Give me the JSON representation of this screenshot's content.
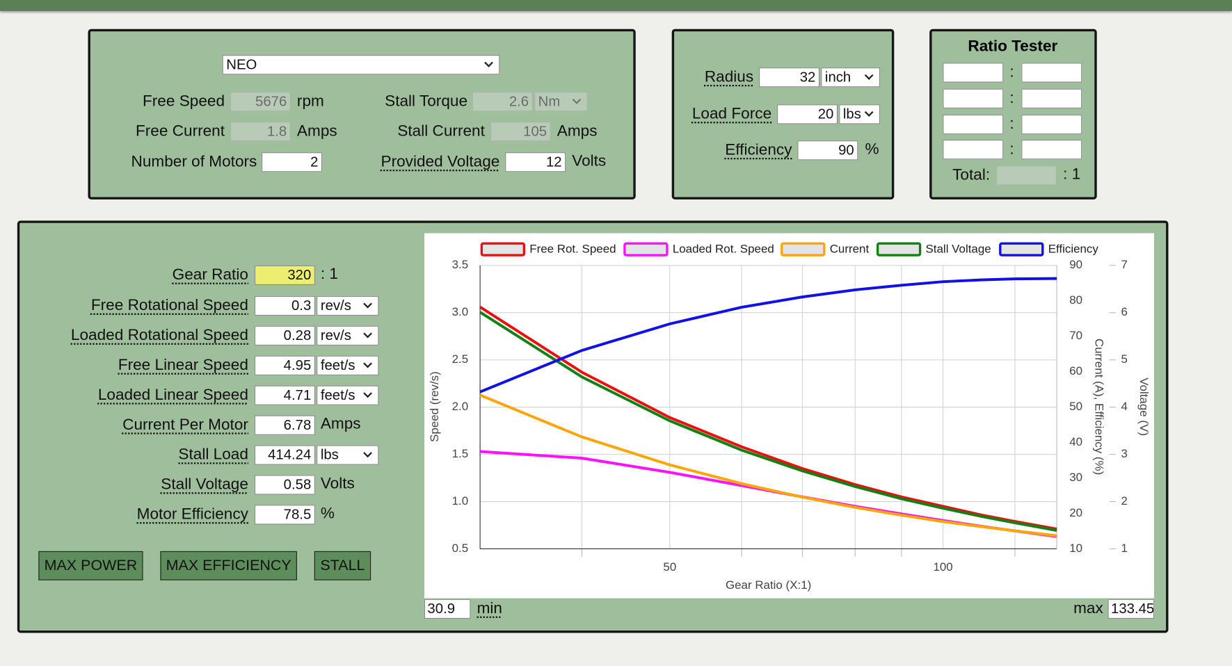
{
  "motor_panel": {
    "motor": "NEO",
    "free_speed": {
      "label": "Free Speed",
      "value": 5676,
      "unit": "rpm"
    },
    "free_current": {
      "label": "Free Current",
      "value": 1.8,
      "unit": "Amps"
    },
    "number_of_motors": {
      "label": "Number of Motors",
      "value": 2
    },
    "stall_torque": {
      "label": "Stall Torque",
      "value": 2.6,
      "unit": "Nm"
    },
    "stall_current": {
      "label": "Stall Current",
      "value": 105,
      "unit": "Amps"
    },
    "provided_voltage": {
      "label": "Provided Voltage",
      "value": 12,
      "unit": "Volts"
    }
  },
  "load_panel": {
    "radius": {
      "label": "Radius",
      "value": 32,
      "unit": "inch"
    },
    "load_force": {
      "label": "Load Force",
      "value": 20,
      "unit": "lbs"
    },
    "efficiency": {
      "label": "Efficiency",
      "value": 90,
      "unit": "%"
    }
  },
  "ratio_tester": {
    "title": "Ratio Tester",
    "separator": ":",
    "total_label": "Total:",
    "total_suffix": ": 1"
  },
  "outputs": {
    "gear_ratio": {
      "label": "Gear Ratio",
      "value": 320,
      "unit": ": 1"
    },
    "free_rotational_speed": {
      "label": "Free Rotational Speed",
      "value": 0.3,
      "unit": "rev/s"
    },
    "loaded_rotational_speed": {
      "label": "Loaded Rotational Speed",
      "value": 0.28,
      "unit": "rev/s"
    },
    "free_linear_speed": {
      "label": "Free Linear Speed",
      "value": 4.95,
      "unit": "feet/s"
    },
    "loaded_linear_speed": {
      "label": "Loaded Linear Speed",
      "value": 4.71,
      "unit": "feet/s"
    },
    "current_per_motor": {
      "label": "Current Per Motor",
      "value": 6.78,
      "unit": "Amps"
    },
    "stall_load": {
      "label": "Stall Load",
      "value": 414.24,
      "unit": "lbs"
    },
    "stall_voltage": {
      "label": "Stall Voltage",
      "value": 0.58,
      "unit": "Volts"
    },
    "motor_efficiency": {
      "label": "Motor Efficiency",
      "value": 78.5,
      "unit": "%"
    }
  },
  "buttons": [
    "MAX POWER",
    "MAX EFFICIENCY",
    "STALL"
  ],
  "range": {
    "min_label": "min",
    "max_label": "max"
  },
  "chart_data": {
    "type": "line",
    "x_label": "Gear Ratio (X:1)",
    "y_label": "Speed (rev/s)",
    "y2_label": "Current (A), Efficiency (%)",
    "y3_label": "Voltage (V)",
    "xscale": "log",
    "xlim": [
      30.9,
      133.45
    ],
    "xticks": [
      50,
      100
    ],
    "minor_xticks": [
      40,
      60,
      70,
      80,
      90,
      120
    ],
    "ylim": [
      0.5,
      3.5
    ],
    "yticks": [
      0.5,
      {
        "value": 1,
        "label": "1.0"
      },
      1.5,
      {
        "value": 2,
        "label": "2.0"
      },
      2.5,
      {
        "value": 3,
        "label": "3.0"
      },
      3.5
    ],
    "y2lim": [
      10,
      90
    ],
    "y2ticks": [
      10,
      20,
      30,
      40,
      50,
      60,
      70,
      80,
      90
    ],
    "y3lim": [
      1,
      7
    ],
    "y3ticks": [
      1,
      2,
      3,
      4,
      5,
      6,
      7
    ],
    "grid": true,
    "legend": "top",
    "x": [
      30.9,
      40,
      50,
      60,
      70,
      80,
      90,
      100,
      110,
      120,
      133.45
    ],
    "series": [
      {
        "name": "Free Rot. Speed",
        "color": "#e81010",
        "axis": "y",
        "values": [
          3.06,
          2.37,
          1.89,
          1.58,
          1.35,
          1.18,
          1.05,
          0.95,
          0.86,
          0.79,
          0.71
        ]
      },
      {
        "name": "Loaded Rot. Speed",
        "color": "#ff10ff",
        "axis": "y",
        "values": [
          1.53,
          1.46,
          1.31,
          1.17,
          1.05,
          0.95,
          0.87,
          0.8,
          0.74,
          0.69,
          0.63
        ]
      },
      {
        "name": "Current",
        "color": "#ffa50a",
        "axis": "y2",
        "values": [
          53.4,
          41.6,
          33.7,
          28.4,
          24.6,
          21.7,
          19.5,
          17.7,
          16.3,
          15.1,
          13.7
        ]
      },
      {
        "name": "Stall Voltage",
        "color": "#138013",
        "axis": "y3",
        "values": [
          6.01,
          4.64,
          3.71,
          3.09,
          2.65,
          2.32,
          2.06,
          1.86,
          1.69,
          1.55,
          1.39
        ]
      },
      {
        "name": "Efficiency",
        "color": "#1010e8",
        "axis": "y2",
        "values": [
          54.3,
          66.0,
          73.5,
          78.2,
          81.1,
          83.1,
          84.4,
          85.4,
          85.9,
          86.2,
          86.3
        ]
      }
    ]
  }
}
